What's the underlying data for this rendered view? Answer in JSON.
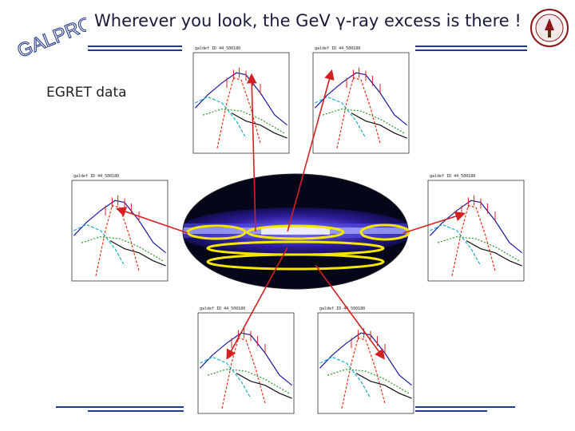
{
  "slide": {
    "logo": "GALPROP",
    "title": "Wherever you look, the GeV γ-ray excess is there !",
    "egret_label": "EGRET data",
    "badge_color": "#8c1515"
  },
  "panels": [
    {
      "id": "top-left",
      "label": "galdef ID 44_500180"
    },
    {
      "id": "top-right",
      "label": "galdef ID 44_500180"
    },
    {
      "id": "mid-left",
      "label": "galdef ID 44_500180"
    },
    {
      "id": "mid-right",
      "label": "galdef ID 44_500180"
    },
    {
      "id": "bottom-left",
      "label": "galdef ID 44_500180"
    },
    {
      "id": "bottom-right",
      "label": "galdef ID 44_500180"
    }
  ],
  "colors": {
    "rule": "#1f3a93",
    "highlight": "#f5e600",
    "arrow": "#d42020",
    "curve_total": "#1a1aa0",
    "curve_pi0": "#e8311a",
    "curve_ic": "#1bb0c8",
    "curve_brems": "#2a9a2a"
  }
}
